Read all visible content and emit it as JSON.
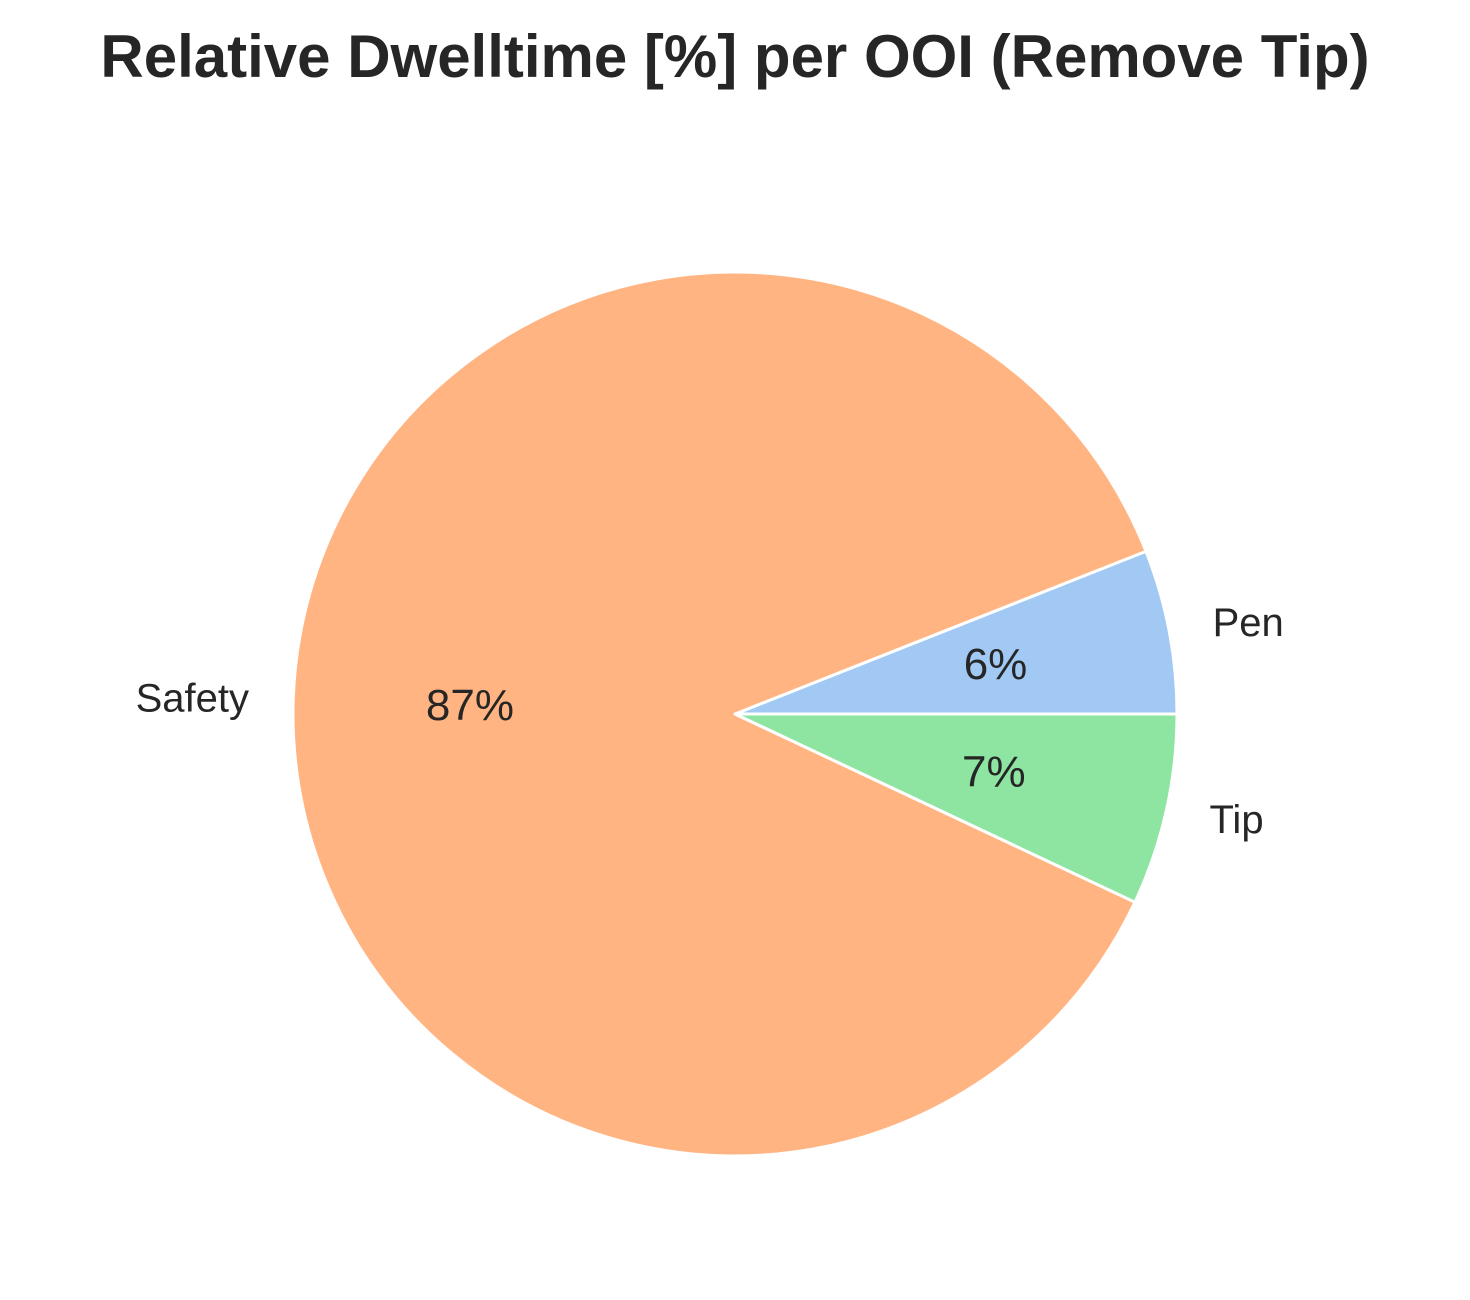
{
  "chart_data": {
    "type": "pie",
    "title": "Relative Dwelltime [%] per OOI (Remove Tip)",
    "slices": [
      {
        "label": "Pen",
        "value": 6,
        "pct_label": "6%",
        "color": "#a1c9f4"
      },
      {
        "label": "Safety",
        "value": 87,
        "pct_label": "87%",
        "color": "#ffb482"
      },
      {
        "label": "Tip",
        "value": 7,
        "pct_label": "7%",
        "color": "#8de5a1"
      }
    ],
    "start_angle_deg": 0,
    "direction": "counterclockwise",
    "wedge_edge_color": "#ffffff",
    "text_color": "#262626"
  }
}
